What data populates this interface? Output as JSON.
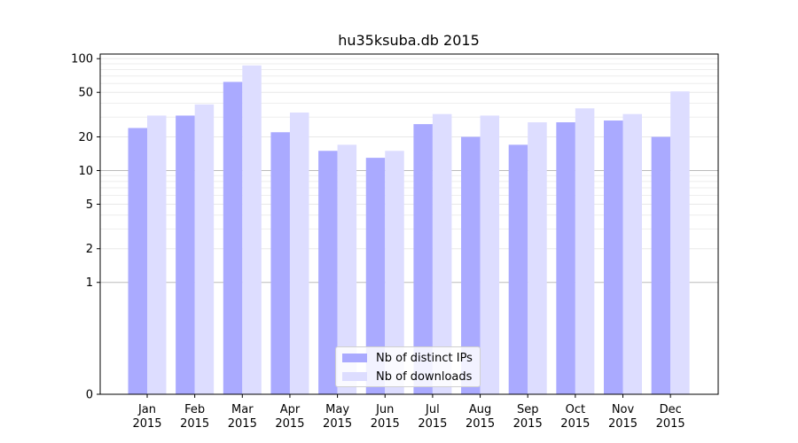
{
  "chart_data": {
    "type": "bar",
    "title": "hu35ksuba.db 2015",
    "xlabel": "",
    "ylabel": "",
    "y_scale": "symlog",
    "ylim": [
      0,
      110
    ],
    "y_ticks": [
      0,
      1,
      2,
      5,
      10,
      20,
      50,
      100
    ],
    "grid": "horizontal",
    "legend_position": "bottom-center",
    "categories": [
      "Jan\n2015",
      "Feb\n2015",
      "Mar\n2015",
      "Apr\n2015",
      "May\n2015",
      "Jun\n2015",
      "Jul\n2015",
      "Aug\n2015",
      "Sep\n2015",
      "Oct\n2015",
      "Nov\n2015",
      "Dec\n2015"
    ],
    "category_labels": [
      {
        "month": "Jan",
        "year": "2015"
      },
      {
        "month": "Feb",
        "year": "2015"
      },
      {
        "month": "Mar",
        "year": "2015"
      },
      {
        "month": "Apr",
        "year": "2015"
      },
      {
        "month": "May",
        "year": "2015"
      },
      {
        "month": "Jun",
        "year": "2015"
      },
      {
        "month": "Jul",
        "year": "2015"
      },
      {
        "month": "Aug",
        "year": "2015"
      },
      {
        "month": "Sep",
        "year": "2015"
      },
      {
        "month": "Oct",
        "year": "2015"
      },
      {
        "month": "Nov",
        "year": "2015"
      },
      {
        "month": "Dec",
        "year": "2015"
      }
    ],
    "series": [
      {
        "name": "Nb of distinct IPs",
        "color": "#aaaaff",
        "values": [
          24,
          31,
          62,
          22,
          15,
          13,
          26,
          20,
          17,
          27,
          28,
          20
        ]
      },
      {
        "name": "Nb of downloads",
        "color": "#ddddff",
        "values": [
          31,
          39,
          87,
          33,
          17,
          15,
          32,
          31,
          27,
          36,
          32,
          51
        ]
      }
    ]
  }
}
